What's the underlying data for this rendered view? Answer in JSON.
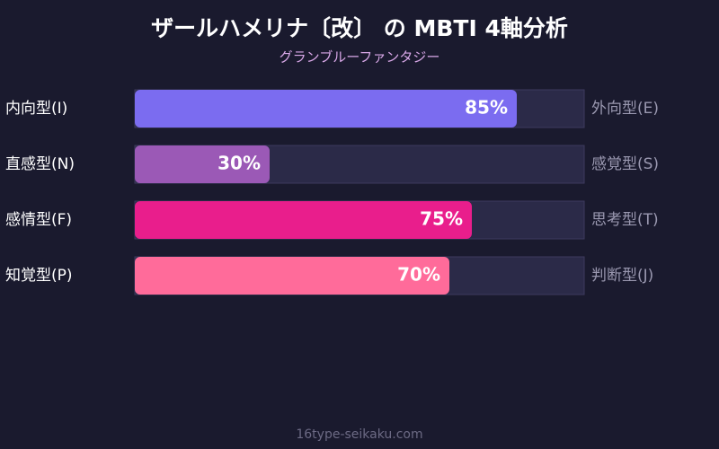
{
  "chart_data": {
    "type": "bar",
    "orientation": "horizontal",
    "title": "ザールハメリナ〔改〕 の MBTI 4軸分析",
    "subtitle": "グランブルーファンタジー",
    "categories": [
      "内向型(I)",
      "直感型(N)",
      "感情型(F)",
      "知覚型(P)"
    ],
    "right_labels": [
      "外向型(E)",
      "感覚型(S)",
      "思考型(T)",
      "判断型(J)"
    ],
    "values": [
      85,
      30,
      75,
      70
    ],
    "value_labels": [
      "85%",
      "30%",
      "75%",
      "70%"
    ],
    "colors": [
      "#7b6cf0",
      "#9b59b6",
      "#e91e8c",
      "#ff6b9a"
    ],
    "xlim": [
      0,
      100
    ],
    "footer": "16type-seikaku.com"
  }
}
